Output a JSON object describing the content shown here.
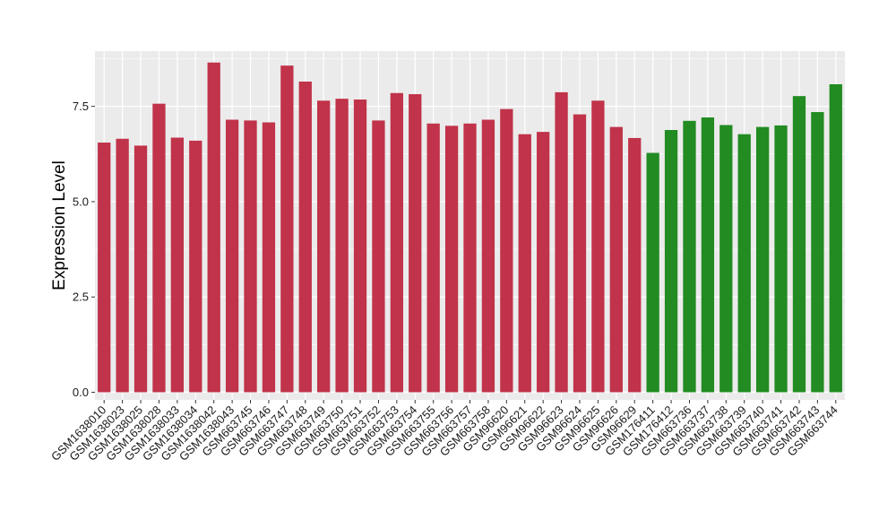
{
  "chart_data": {
    "type": "bar",
    "title": "",
    "xlabel": "",
    "ylabel": "Expression Level",
    "ylim": [
      -0.2,
      8.95
    ],
    "yticks": [
      0.0,
      2.5,
      5.0,
      7.5
    ],
    "ytick_labels": [
      "0.0",
      "2.5",
      "5.0",
      "7.5"
    ],
    "grid": true,
    "panel_background": "#ebebeb",
    "grid_color": "#ffffff",
    "categories": [
      "GSM1638010",
      "GSM1638023",
      "GSM1638025",
      "GSM1638028",
      "GSM1638033",
      "GSM1638034",
      "GSM1638042",
      "GSM1638043",
      "GSM663745",
      "GSM663746",
      "GSM663747",
      "GSM663748",
      "GSM663749",
      "GSM663750",
      "GSM663751",
      "GSM663752",
      "GSM663753",
      "GSM663754",
      "GSM663755",
      "GSM663756",
      "GSM663757",
      "GSM663758",
      "GSM96620",
      "GSM96621",
      "GSM96622",
      "GSM96623",
      "GSM96624",
      "GSM96625",
      "GSM96626",
      "GSM96629",
      "GSM176411",
      "GSM176412",
      "GSM663736",
      "GSM663737",
      "GSM663738",
      "GSM663739",
      "GSM663740",
      "GSM663741",
      "GSM663742",
      "GSM663743",
      "GSM663744"
    ],
    "values": [
      6.55,
      6.65,
      6.47,
      7.57,
      6.68,
      6.6,
      8.65,
      7.15,
      7.13,
      7.08,
      8.57,
      8.15,
      7.65,
      7.7,
      7.68,
      7.13,
      7.85,
      7.82,
      7.05,
      6.99,
      7.05,
      7.15,
      7.43,
      6.77,
      6.83,
      7.87,
      7.29,
      7.65,
      6.96,
      6.67,
      6.28,
      6.88,
      7.12,
      7.21,
      7.01,
      6.77,
      6.96,
      7.0,
      7.77,
      7.35,
      8.08
    ],
    "group_colors": [
      "#c0334a",
      "#228b22"
    ],
    "groups": [
      0,
      0,
      0,
      0,
      0,
      0,
      0,
      0,
      0,
      0,
      0,
      0,
      0,
      0,
      0,
      0,
      0,
      0,
      0,
      0,
      0,
      0,
      0,
      0,
      0,
      0,
      0,
      0,
      0,
      0,
      1,
      1,
      1,
      1,
      1,
      1,
      1,
      1,
      1,
      1,
      1
    ]
  }
}
